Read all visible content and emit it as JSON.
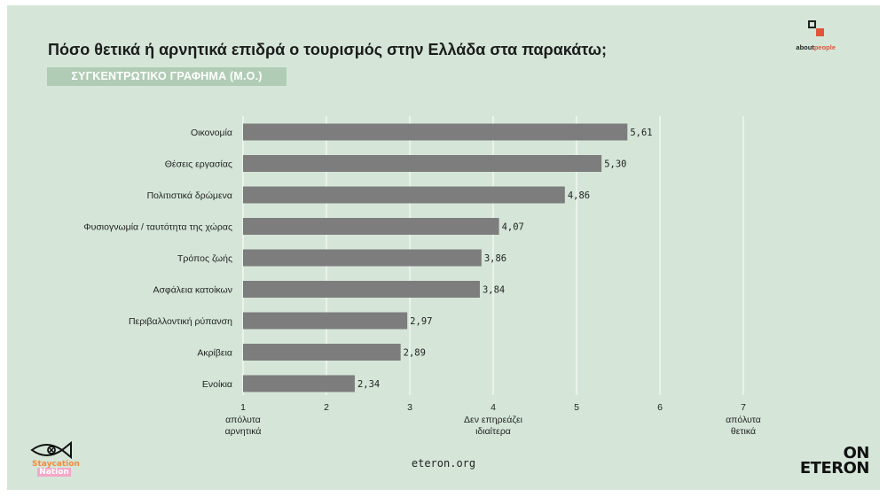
{
  "header": {
    "title": "Πόσο θετικά ή αρνητικά επιδρά ο τουρισμός στην Ελλάδα στα παρακάτω;",
    "subtitle": "ΣΥΓΚΕΝΤΡΩΤΙΚΟ ΓΡΑΦΗΜΑ (Μ.Ο.)"
  },
  "logos": {
    "aboutpeople": {
      "prefix": "about",
      "accent": "people",
      "accent_color": "#e0553a"
    },
    "eteron": {
      "line1": "ON",
      "line2": "ETERON"
    },
    "staycation": {
      "line1": "Staycation",
      "line2": "Nation"
    }
  },
  "footer": {
    "url": "eteron.org"
  },
  "colors": {
    "background": "#d5e6d9",
    "bar": "#7d7d7d",
    "gridline": "#ffffff",
    "subtitle_bg": "#b0ccb5"
  },
  "chart_data": {
    "type": "bar",
    "orientation": "horizontal",
    "categories": [
      "Οικονομία",
      "Θέσεις εργασίας",
      "Πολιτιστικά δρώμενα",
      "Φυσιογνωμία / ταυτότητα της χώρας",
      "Τρόπος ζωής",
      "Ασφάλεια κατοίκων",
      "Περιβαλλοντική ρύπανση",
      "Ακρίβεια",
      "Ενοίκια"
    ],
    "values": [
      5.61,
      5.3,
      4.86,
      4.07,
      3.86,
      3.84,
      2.97,
      2.89,
      2.34
    ],
    "value_labels": [
      "5,61",
      "5,30",
      "4,86",
      "4,07",
      "3,86",
      "3,84",
      "2,97",
      "2,89",
      "2,34"
    ],
    "xlim": [
      1,
      7
    ],
    "xticks": [
      1,
      2,
      3,
      4,
      5,
      6,
      7
    ],
    "xtick_labels": [
      "1",
      "2",
      "3",
      "4",
      "5",
      "6",
      "7"
    ],
    "x_annotations": [
      {
        "x": 1,
        "lines": [
          "απόλυτα",
          "αρνητικά"
        ]
      },
      {
        "x": 4,
        "lines": [
          "Δεν επηρεάζει",
          "ιδιαίτερα"
        ]
      },
      {
        "x": 7,
        "lines": [
          "απόλυτα",
          "θετικά"
        ]
      }
    ],
    "grid": true,
    "legend": "none"
  }
}
